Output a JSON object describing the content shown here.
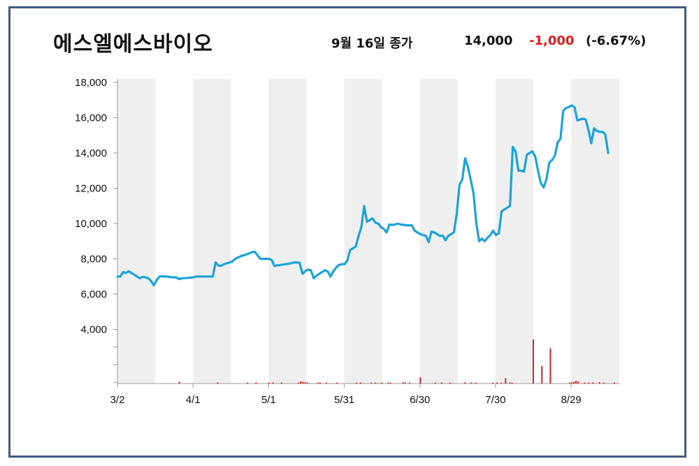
{
  "header": {
    "company": "에스엘에스바이오",
    "close_label": "9월 16일 종가",
    "close_price": "14,000",
    "change": "-1,000",
    "change_pct": "(-6.67%)"
  },
  "colors": {
    "line": "#1aa3d9",
    "volume": "#d61f26",
    "change": "#e11b1b",
    "band": "#efefef",
    "frame": "#3f5a82"
  },
  "chart_data": {
    "type": "line",
    "title": "",
    "xlabel": "",
    "ylabel": "",
    "ylim": [
      1000,
      18000
    ],
    "y_ticks": [
      "4,000",
      "6,000",
      "8,000",
      "10,000",
      "12,000",
      "14,000",
      "16,000",
      "18,000"
    ],
    "y_tick_values": [
      4000,
      6000,
      8000,
      10000,
      12000,
      14000,
      16000,
      18000
    ],
    "x_ticks": [
      "3/2",
      "4/1",
      "5/1",
      "5/31",
      "6/30",
      "7/30",
      "8/29"
    ],
    "x_tick_days": [
      0,
      30,
      60,
      90,
      120,
      150,
      180
    ],
    "x_range_days": [
      0,
      198
    ],
    "grid": false,
    "series": [
      {
        "price": [
          [
            0,
            7000
          ],
          [
            1,
            7000
          ],
          [
            2,
            7250
          ],
          [
            3,
            7200
          ],
          [
            4,
            7300
          ],
          [
            5,
            7200
          ],
          [
            6,
            7100
          ],
          [
            7,
            7000
          ],
          [
            8,
            6900
          ],
          [
            9,
            6980
          ],
          [
            10,
            6950
          ],
          [
            11,
            6900
          ],
          [
            12,
            6750
          ],
          [
            13,
            6500
          ],
          [
            14,
            6800
          ],
          [
            15,
            7000
          ],
          [
            16,
            7010
          ],
          [
            18,
            6990
          ],
          [
            20,
            6950
          ],
          [
            21,
            6950
          ],
          [
            22,
            6850
          ],
          [
            23,
            6900
          ],
          [
            25,
            6920
          ],
          [
            27,
            6950
          ],
          [
            28,
            7000
          ],
          [
            30,
            7000
          ],
          [
            32,
            7000
          ],
          [
            33,
            7000
          ],
          [
            34,
            7000
          ],
          [
            35,
            7800
          ],
          [
            36,
            7620
          ],
          [
            37,
            7600
          ],
          [
            38,
            7700
          ],
          [
            40,
            7800
          ],
          [
            41,
            7850
          ],
          [
            42,
            8000
          ],
          [
            44,
            8150
          ],
          [
            46,
            8250
          ],
          [
            48,
            8380
          ],
          [
            49,
            8400
          ],
          [
            50,
            8200
          ],
          [
            51,
            8000
          ],
          [
            52,
            8000
          ],
          [
            54,
            8000
          ],
          [
            55,
            7950
          ],
          [
            56,
            7600
          ],
          [
            58,
            7650
          ],
          [
            60,
            7700
          ],
          [
            62,
            7750
          ],
          [
            63,
            7800
          ],
          [
            64,
            7800
          ],
          [
            65,
            7780
          ],
          [
            66,
            7150
          ],
          [
            67,
            7300
          ],
          [
            68,
            7400
          ],
          [
            69,
            7350
          ],
          [
            70,
            6900
          ],
          [
            71,
            7050
          ],
          [
            72,
            7150
          ],
          [
            73,
            7250
          ],
          [
            74,
            7350
          ],
          [
            75,
            7280
          ],
          [
            76,
            7000
          ],
          [
            77,
            7300
          ],
          [
            78,
            7500
          ],
          [
            79,
            7650
          ],
          [
            80,
            7700
          ],
          [
            81,
            7700
          ],
          [
            82,
            7900
          ],
          [
            83,
            8500
          ],
          [
            84,
            8600
          ],
          [
            85,
            8700
          ],
          [
            86,
            9300
          ],
          [
            87,
            9800
          ],
          [
            88,
            11000
          ],
          [
            89,
            10100
          ],
          [
            90,
            10200
          ],
          [
            91,
            10300
          ],
          [
            92,
            10050
          ],
          [
            93,
            10000
          ],
          [
            94,
            9800
          ],
          [
            95,
            9700
          ],
          [
            96,
            9500
          ],
          [
            97,
            9950
          ],
          [
            98,
            9920
          ],
          [
            99,
            9950
          ],
          [
            100,
            10000
          ],
          [
            101,
            9950
          ],
          [
            102,
            9930
          ],
          [
            103,
            9900
          ],
          [
            104,
            9900
          ],
          [
            105,
            9900
          ],
          [
            106,
            9600
          ],
          [
            107,
            9500
          ],
          [
            108,
            9400
          ],
          [
            109,
            9350
          ],
          [
            110,
            9300
          ],
          [
            111,
            8950
          ],
          [
            112,
            9550
          ],
          [
            113,
            9500
          ],
          [
            114,
            9400
          ],
          [
            115,
            9300
          ],
          [
            116,
            9320
          ],
          [
            117,
            9050
          ],
          [
            118,
            9300
          ],
          [
            119,
            9400
          ],
          [
            120,
            9500
          ],
          [
            121,
            10550
          ],
          [
            122,
            12200
          ],
          [
            123,
            12500
          ],
          [
            124,
            13700
          ],
          [
            125,
            13200
          ],
          [
            126,
            12500
          ],
          [
            127,
            11700
          ],
          [
            128,
            10000
          ],
          [
            129,
            9000
          ],
          [
            130,
            9150
          ],
          [
            131,
            9000
          ],
          [
            132,
            9200
          ],
          [
            133,
            9350
          ],
          [
            134,
            9600
          ],
          [
            135,
            9350
          ],
          [
            136,
            9450
          ],
          [
            137,
            10700
          ],
          [
            138,
            10800
          ],
          [
            139,
            10900
          ],
          [
            140,
            11000
          ],
          [
            141,
            14350
          ],
          [
            142,
            14100
          ],
          [
            143,
            13000
          ],
          [
            144,
            13000
          ],
          [
            145,
            12950
          ],
          [
            146,
            13900
          ],
          [
            147,
            14000
          ],
          [
            148,
            14100
          ],
          [
            149,
            13800
          ],
          [
            150,
            13000
          ],
          [
            151,
            12300
          ],
          [
            152,
            12050
          ],
          [
            153,
            12500
          ],
          [
            154,
            13450
          ],
          [
            155,
            13600
          ],
          [
            156,
            13850
          ],
          [
            157,
            14600
          ],
          [
            158,
            14800
          ],
          [
            159,
            16400
          ],
          [
            160,
            16550
          ],
          [
            161,
            16600
          ],
          [
            162,
            16700
          ],
          [
            163,
            16600
          ],
          [
            164,
            15850
          ],
          [
            165,
            15900
          ],
          [
            166,
            15950
          ],
          [
            167,
            15900
          ],
          [
            168,
            15300
          ],
          [
            169,
            14550
          ],
          [
            170,
            15400
          ],
          [
            171,
            15250
          ],
          [
            172,
            15200
          ],
          [
            173,
            15200
          ],
          [
            174,
            15050
          ],
          [
            175,
            14000
          ]
        ]
      },
      {
        "volume": [
          [
            29,
            0.04
          ],
          [
            47,
            0.01
          ],
          [
            61,
            0.01
          ],
          [
            65,
            0.01
          ],
          [
            71,
            0.01
          ],
          [
            73,
            0.02
          ],
          [
            77,
            0.01
          ],
          [
            85,
            0.02
          ],
          [
            86,
            0.05
          ],
          [
            87,
            0.04
          ],
          [
            88,
            0.03
          ],
          [
            89,
            0.02
          ],
          [
            94,
            0.01
          ],
          [
            95,
            0.02
          ],
          [
            98,
            0.01
          ],
          [
            103,
            0.01
          ],
          [
            112,
            0.01
          ],
          [
            114,
            0.01
          ],
          [
            119,
            0.01
          ],
          [
            121,
            0.02
          ],
          [
            124,
            0.01
          ],
          [
            127,
            0.02
          ],
          [
            128,
            0.01
          ],
          [
            134,
            0.03
          ],
          [
            135,
            0.02
          ],
          [
            137,
            0.01
          ],
          [
            142,
            0.14
          ],
          [
            149,
            0.01
          ],
          [
            152,
            0.01
          ],
          [
            156,
            0.01
          ],
          [
            163,
            0.03
          ],
          [
            166,
            0.02
          ],
          [
            168,
            0.01
          ],
          [
            176,
            0.01
          ],
          [
            178,
            0.01
          ],
          [
            180,
            0.01
          ],
          [
            182,
            0.12
          ],
          [
            184,
            0.02
          ],
          [
            185,
            0.01
          ],
          [
            195,
            1.0
          ],
          [
            199,
            0.4
          ],
          [
            203,
            0.8
          ],
          [
            212,
            0.02
          ],
          [
            213,
            0.03
          ],
          [
            214,
            0.04
          ],
          [
            215,
            0.06
          ],
          [
            216,
            0.05
          ],
          [
            219,
            0.01
          ],
          [
            221,
            0.02
          ],
          [
            223,
            0.01
          ],
          [
            226,
            0.03
          ],
          [
            228,
            0.01
          ],
          [
            233,
            0.02
          ]
        ]
      }
    ]
  }
}
